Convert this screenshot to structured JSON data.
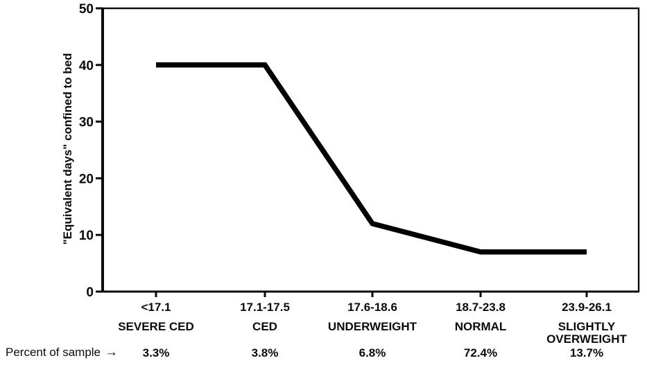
{
  "chart_data": {
    "type": "line",
    "title": "",
    "ylabel": "\"Equivalent days\" confined to bed",
    "xlabel": "",
    "ylim": [
      0,
      50
    ],
    "yticks": [
      0,
      10,
      20,
      30,
      40,
      50
    ],
    "grid": false,
    "legend_position": "none",
    "line_color": "#000000",
    "categories": [
      "<17.1",
      "17.1-17.5",
      "17.6-18.6",
      "18.7-23.8",
      "23.9-26.1"
    ],
    "category_labels": [
      [
        "SEVERE CED"
      ],
      [
        "CED"
      ],
      [
        "UNDERWEIGHT"
      ],
      [
        "NORMAL"
      ],
      [
        "SLIGHTLY",
        "OVERWEIGHT"
      ]
    ],
    "values": [
      40,
      40,
      12,
      7,
      7
    ],
    "percent_of_sample": [
      "3.3%",
      "3.8%",
      "6.8%",
      "72.4%",
      "13.7%"
    ]
  },
  "footer": {
    "label": "Percent of sample",
    "arrow": "→"
  },
  "colors": {
    "ink": "#0b0b0b",
    "background": "#ffffff"
  }
}
